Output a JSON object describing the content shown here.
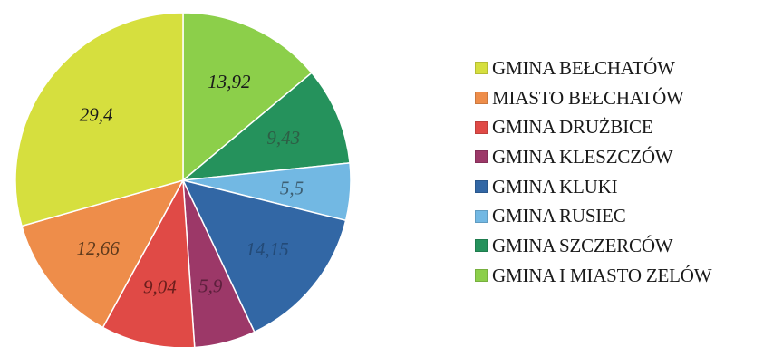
{
  "chart_data": {
    "type": "pie",
    "legend_position": "right",
    "slices": [
      {
        "name": "GMINA I MIASTO ZELÓW",
        "value": 13.92,
        "label": "13,92",
        "color": "#8ccf4a",
        "label_color": "#1a1a1a"
      },
      {
        "name": "GMINA SZCZERCÓW",
        "value": 9.43,
        "label": "9,43",
        "color": "#25925c",
        "label_color": "#2d5e45"
      },
      {
        "name": "GMINA RUSIEC",
        "value": 5.5,
        "label": "5,5",
        "color": "#72b8e3",
        "label_color": "#3d5f73"
      },
      {
        "name": "GMINA KLUKI",
        "value": 14.15,
        "label": "14,15",
        "color": "#3267a5",
        "label_color": "#234a77"
      },
      {
        "name": "GMINA KLESZCZÓW",
        "value": 5.9,
        "label": "5,9",
        "color": "#9c3868",
        "label_color": "#5c1f3c"
      },
      {
        "name": "GMINA DRUŻBICE",
        "value": 9.04,
        "label": "9,04",
        "color": "#e04a46",
        "label_color": "#6b1e1c"
      },
      {
        "name": "MIASTO BEŁCHATÓW",
        "value": 12.66,
        "label": "12,66",
        "color": "#ee8d4a",
        "label_color": "#5e3a1c"
      },
      {
        "name": "GMINA BEŁCHATÓW",
        "value": 29.4,
        "label": "29,4",
        "color": "#d6df3e",
        "label_color": "#1a1a1a"
      }
    ],
    "legend": [
      {
        "label": "GMINA BEŁCHATÓW",
        "color": "#d6df3e"
      },
      {
        "label": "MIASTO BEŁCHATÓW",
        "color": "#ee8d4a"
      },
      {
        "label": "GMINA DRUŻBICE",
        "color": "#e04a46"
      },
      {
        "label": "GMINA KLESZCZÓW",
        "color": "#9c3868"
      },
      {
        "label": "GMINA KLUKI",
        "color": "#3267a5"
      },
      {
        "label": "GMINA RUSIEC",
        "color": "#72b8e3"
      },
      {
        "label": "GMINA SZCZERCÓW",
        "color": "#25925c"
      },
      {
        "label": "GMINA I MIASTO ZELÓW",
        "color": "#8ccf4a"
      }
    ]
  }
}
